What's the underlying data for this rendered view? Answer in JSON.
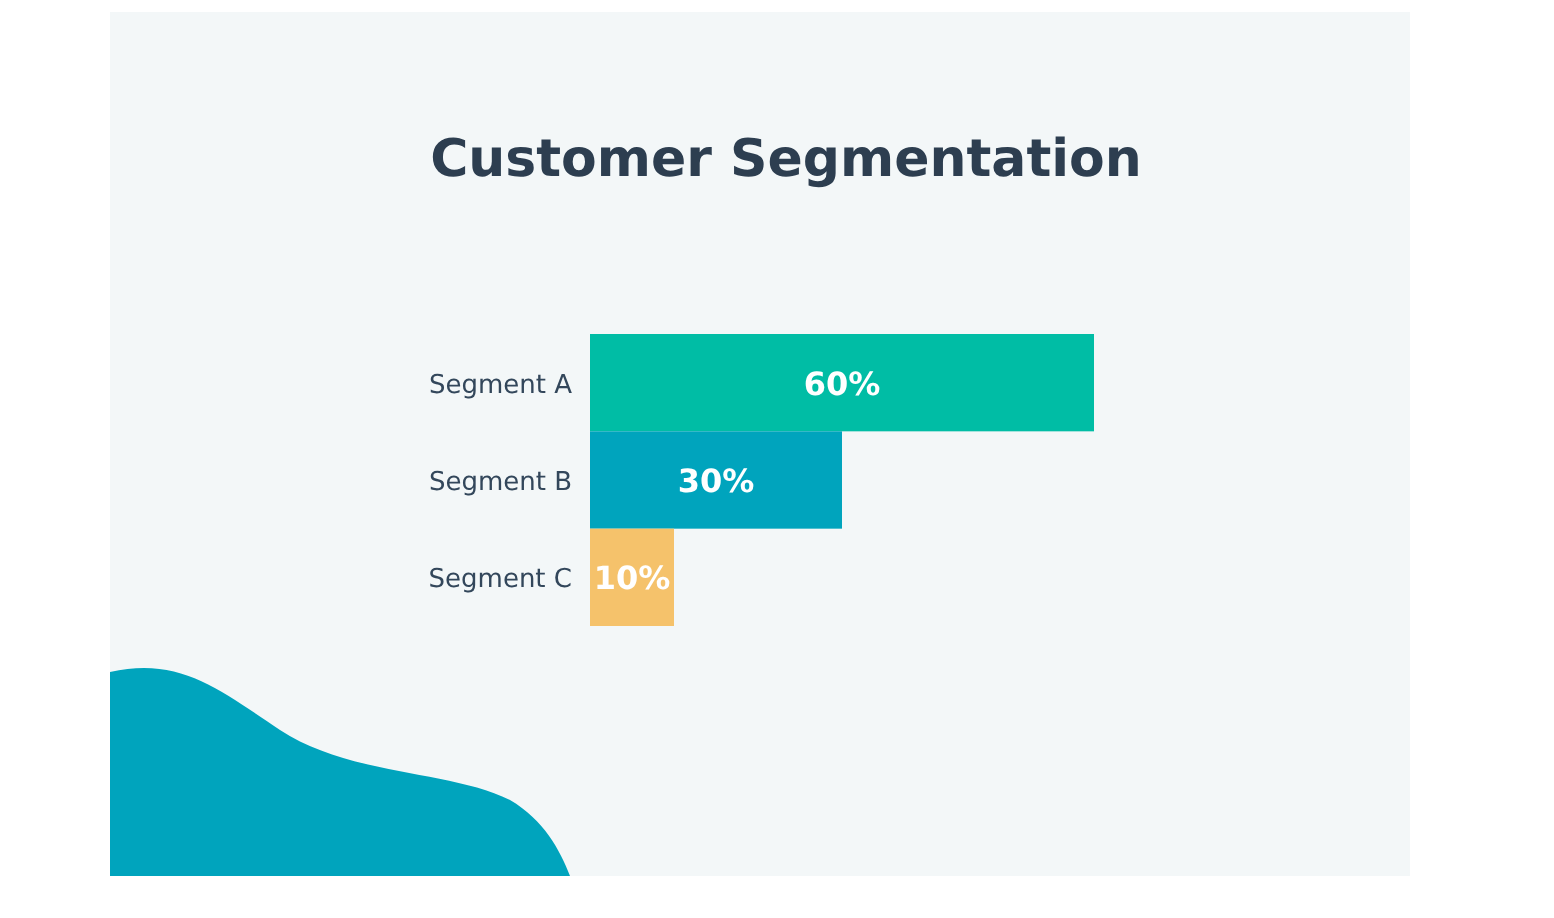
{
  "chart_data": {
    "type": "bar",
    "orientation": "horizontal",
    "title": "Customer Segmentation",
    "categories": [
      "Segment A",
      "Segment B",
      "Segment C"
    ],
    "values": [
      60,
      30,
      10
    ],
    "colors": [
      "#00bda5",
      "#00a4bd",
      "#f5c26b"
    ],
    "value_labels": [
      "60%",
      "30%",
      "10%"
    ]
  }
}
